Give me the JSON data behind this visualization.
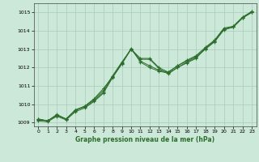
{
  "title": "Graphe pression niveau de la mer (hPa)",
  "background_color": "#cce8d8",
  "grid_color": "#aaccbb",
  "line_color": "#2d6e2d",
  "xlim": [
    -0.5,
    23.5
  ],
  "ylim": [
    1008.8,
    1015.5
  ],
  "yticks": [
    1009,
    1010,
    1011,
    1012,
    1013,
    1014,
    1015
  ],
  "xticks": [
    0,
    1,
    2,
    3,
    4,
    5,
    6,
    7,
    8,
    9,
    10,
    11,
    12,
    13,
    14,
    15,
    16,
    17,
    18,
    19,
    20,
    21,
    22,
    23
  ],
  "series": [
    [
      1009.15,
      1009.1,
      1009.4,
      1009.2,
      1009.7,
      1009.85,
      1010.2,
      1010.65,
      1011.5,
      1012.25,
      1013.0,
      1012.5,
      1012.5,
      1012.0,
      1011.75,
      1012.1,
      1012.4,
      1012.65,
      1013.1,
      1013.5,
      1014.15,
      1014.25,
      1014.75,
      1015.05
    ],
    [
      1009.2,
      1009.1,
      1009.4,
      1009.2,
      1009.7,
      1009.9,
      1010.25,
      1010.75,
      1011.55,
      1012.3,
      1013.0,
      1012.35,
      1012.1,
      1011.85,
      1011.75,
      1012.1,
      1012.35,
      1012.6,
      1013.05,
      1013.45,
      1014.1,
      1014.2,
      1014.7,
      1015.0
    ],
    [
      1009.2,
      1009.1,
      1009.45,
      1009.2,
      1009.65,
      1009.9,
      1010.3,
      1010.85,
      1011.5,
      1012.2,
      1013.05,
      1012.3,
      1012.0,
      1011.8,
      1011.7,
      1012.0,
      1012.3,
      1012.55,
      1013.0,
      1013.4,
      1014.05,
      1014.2,
      1014.7,
      1015.0
    ],
    [
      1009.1,
      1009.05,
      1009.35,
      1009.15,
      1009.6,
      1009.8,
      1010.15,
      1010.6,
      1011.45,
      1012.2,
      1013.0,
      1012.45,
      1012.45,
      1011.95,
      1011.65,
      1012.0,
      1012.25,
      1012.5,
      1013.05,
      1013.45,
      1014.1,
      1014.2,
      1014.7,
      1015.05
    ]
  ]
}
